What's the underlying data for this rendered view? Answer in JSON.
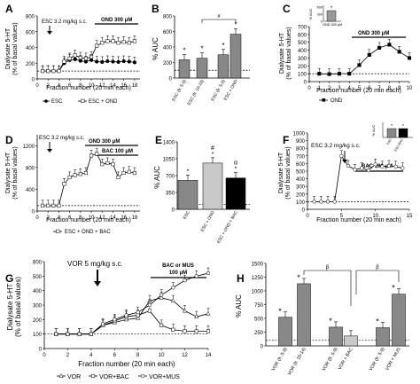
{
  "figure": {
    "panels": {
      "A": {
        "label": "A",
        "ylabel": "Dialysate 5-HT\n(% of basal values)",
        "xlabel": "Fraction number (20 min each)",
        "injection": "ESC 3.2 mg/kg s.c.",
        "treatment": "OND 300 μM",
        "legend": [
          "ESC",
          "ESC + OND"
        ],
        "yticks": [
          "0",
          "200",
          "400",
          "600",
          "800"
        ],
        "xticks": [
          "0",
          "2",
          "4",
          "6",
          "8",
          "10",
          "12",
          "14",
          "16",
          "18"
        ]
      },
      "B": {
        "label": "B",
        "ylabel": "% AUC",
        "yticks": [
          "0",
          "200",
          "400",
          "600",
          "800"
        ],
        "sig": "#",
        "star": "*",
        "cats": [
          "ESC (fr. 5-9)",
          "ESC (fr. 10-18)",
          "ESC (fr. 5-9)",
          "ESC + OND"
        ]
      },
      "C": {
        "label": "C",
        "ylabel": "Dialysate 5-HT\n(% of basal values)",
        "xlabel": "Fraction number (20 min each)",
        "treatment": "OND 300 μM",
        "legend": [
          "OND"
        ],
        "yticks": [
          "0",
          "100",
          "200",
          "300",
          "400",
          "500",
          "600",
          "700"
        ],
        "xticks": [
          "0",
          "1",
          "2",
          "3",
          "4",
          "5",
          "6",
          "7",
          "8",
          "9",
          "10"
        ],
        "inset": {
          "ylabel": "% AUC",
          "yticks": [
            "0",
            "300",
            "600"
          ],
          "xlabel": "OND 300 μM",
          "star": "*"
        }
      },
      "D": {
        "label": "D",
        "ylabel": "Dialysate 5-HT\n(% of basal values)",
        "xlabel": "Fraction number (20 min each)",
        "injection": "ESC 3.2 mg/kg s.c.",
        "treatment1": "OND 300 μM",
        "treatment2": "BAC 100 μM",
        "legend": [
          "ESC + OND + BAC"
        ],
        "yticks": [
          "0",
          "400",
          "800",
          "1200"
        ],
        "xticks": [
          "0",
          "2",
          "4",
          "6",
          "8",
          "10",
          "12",
          "14",
          "16",
          "18"
        ]
      },
      "E": {
        "label": "E",
        "ylabel": "% AUC",
        "yticks": [
          "0",
          "350",
          "700",
          "1050",
          "1400"
        ],
        "cats": [
          "ESC",
          "ESC + OND",
          "ESC + OND + BAC"
        ],
        "sig": [
          "*",
          "#\n*",
          "α\n*"
        ]
      },
      "F": {
        "label": "F",
        "ylabel": "Dialysate 5-HT\n(% of basal values)",
        "xlabel": "Fraction number (20 min each)",
        "injection": "ESC 3.2 mg/kg s.c.",
        "treatment": "BAC 100 μM",
        "yticks": [
          "0",
          "100",
          "200",
          "300",
          "400",
          "500",
          "600",
          "700",
          "800",
          "900",
          "1000"
        ],
        "xticks": [
          "0",
          "5",
          "10",
          "15"
        ],
        "inset": {
          "ylabel": "% AUC",
          "cats": [
            "ESC",
            "ESC+BAC"
          ],
          "star": "*"
        }
      },
      "G": {
        "label": "G",
        "ylabel": "Dialysate 5-HT\n(% of basal values)",
        "xlabel": "Fraction number (20 min each)",
        "injection": "VOR 5 mg/kg s.c.",
        "treatment": "BAC or MUS\n100 μM",
        "legend": [
          "VOR",
          "VOR+BAC",
          "VOR+MUS"
        ],
        "yticks": [
          "0",
          "100",
          "200",
          "300",
          "400",
          "500",
          "600"
        ],
        "xticks": [
          "0",
          "2",
          "4",
          "6",
          "8",
          "10",
          "12",
          "14"
        ]
      },
      "H": {
        "label": "H",
        "ylabel": "% AUC",
        "yticks": [
          "0",
          "250",
          "500",
          "750",
          "1000",
          "1250",
          "1500"
        ],
        "sig": "β",
        "cats": [
          "VOR (fr. 5-9)",
          "VOR (fr. 10-14)",
          "VOR (fr. 5-9)",
          "VOR + BAC",
          "VOR (fr. 5-9)",
          "VOR + MUS"
        ]
      }
    }
  },
  "chart_data": [
    {
      "panel": "A",
      "type": "line",
      "x": [
        1,
        2,
        3,
        4,
        5,
        6,
        7,
        8,
        9,
        10,
        11,
        12,
        13,
        14,
        15,
        16,
        17,
        18
      ],
      "series": [
        {
          "name": "ESC",
          "values": [
            100,
            100,
            100,
            100,
            200,
            240,
            250,
            230,
            220,
            240,
            220,
            215,
            225,
            220,
            215,
            225,
            220,
            210
          ]
        },
        {
          "name": "ESC + OND",
          "values": [
            100,
            100,
            100,
            100,
            220,
            260,
            300,
            270,
            260,
            280,
            420,
            460,
            480,
            480,
            460,
            470,
            460,
            480
          ]
        }
      ],
      "ylim": [
        0,
        800
      ],
      "xlim": [
        0,
        19
      ]
    },
    {
      "panel": "B",
      "type": "bar",
      "categories": [
        "ESC (fr. 5-9)",
        "ESC (fr. 10-18)",
        "ESC (fr. 5-9)",
        "ESC + OND"
      ],
      "values": [
        235,
        255,
        300,
        565
      ],
      "ylim": [
        0,
        800
      ]
    },
    {
      "panel": "C",
      "type": "line",
      "x": [
        1,
        2,
        3,
        4,
        5,
        6,
        7,
        8,
        9,
        10
      ],
      "series": [
        {
          "name": "OND",
          "values": [
            100,
            95,
            100,
            100,
            210,
            340,
            430,
            470,
            380,
            300
          ]
        }
      ],
      "ylim": [
        0,
        700
      ],
      "xlim": [
        0,
        10
      ]
    },
    {
      "panel": "D",
      "type": "line",
      "x": [
        1,
        2,
        3,
        4,
        5,
        6,
        7,
        8,
        9,
        10,
        11,
        12,
        13,
        14,
        15,
        16,
        17,
        18
      ],
      "series": [
        {
          "name": "ESC + OND + BAC",
          "values": [
            100,
            100,
            100,
            100,
            500,
            620,
            660,
            680,
            700,
            1020,
            1050,
            860,
            880,
            860,
            620,
            700,
            720,
            700
          ]
        }
      ],
      "ylim": [
        0,
        1400
      ],
      "xlim": [
        0,
        19
      ]
    },
    {
      "panel": "E",
      "type": "bar",
      "categories": [
        "ESC",
        "ESC + OND",
        "ESC + OND + BAC"
      ],
      "values": [
        600,
        960,
        650
      ],
      "ylim": [
        0,
        1400
      ]
    },
    {
      "panel": "F",
      "type": "line",
      "x": [
        1,
        2,
        3,
        4,
        5,
        6,
        7,
        8,
        9,
        10,
        11,
        12,
        13,
        14
      ],
      "series": [
        {
          "values": [
            100,
            100,
            100,
            100,
            700,
            570,
            520,
            540,
            510,
            590,
            560,
            570,
            560,
            540
          ]
        }
      ],
      "ylim": [
        0,
        1000
      ],
      "xlim": [
        0,
        15
      ]
    },
    {
      "panel": "G",
      "type": "line",
      "x": [
        1,
        2,
        3,
        4,
        5,
        6,
        7,
        8,
        9,
        10,
        11,
        12,
        13,
        14
      ],
      "series": [
        {
          "name": "VOR",
          "values": [
            100,
            100,
            100,
            100,
            160,
            180,
            200,
            210,
            330,
            350,
            330,
            260,
            220,
            240
          ]
        },
        {
          "name": "VOR+BAC",
          "values": [
            100,
            100,
            100,
            100,
            160,
            190,
            220,
            230,
            260,
            160,
            130,
            120,
            120,
            120
          ]
        },
        {
          "name": "VOR+MUS",
          "values": [
            100,
            100,
            100,
            100,
            170,
            200,
            230,
            250,
            300,
            370,
            420,
            470,
            500,
            520
          ]
        }
      ],
      "ylim": [
        0,
        600
      ],
      "xlim": [
        0,
        14
      ]
    },
    {
      "panel": "H",
      "type": "bar",
      "categories": [
        "VOR (fr. 5-9)",
        "VOR (fr. 10-14)",
        "VOR (fr. 5-9)",
        "VOR + BAC",
        "VOR (fr. 5-9)",
        "VOR + MUS"
      ],
      "values": [
        520,
        1130,
        340,
        180,
        330,
        940
      ],
      "ylim": [
        0,
        1500
      ]
    }
  ]
}
